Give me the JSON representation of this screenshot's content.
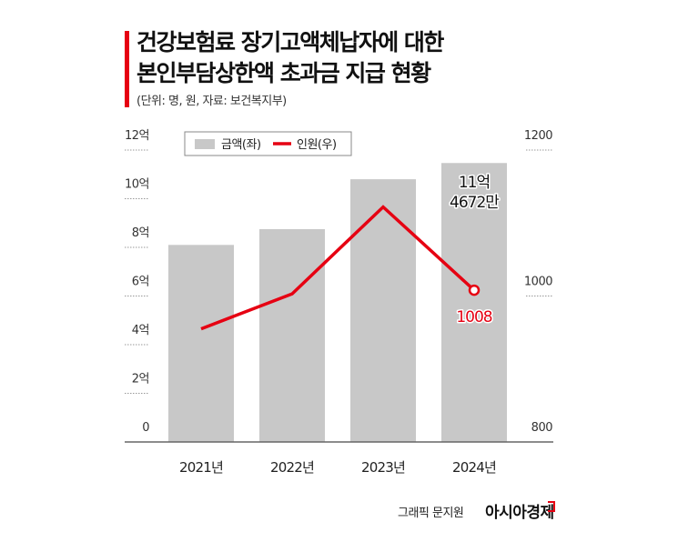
{
  "header": {
    "title_line1": "건강보험료 장기고액체납자에 대한",
    "title_line2": "본인부담상한액 초과금 지급 현황",
    "subtitle": "(단위: 명, 원, 자료: 보건복지부)"
  },
  "footer": {
    "credit": "그래픽 문지원",
    "brand": "아시아경제"
  },
  "colors": {
    "bar": "#c8c8c8",
    "line": "#e60012",
    "accent": "#e60012"
  },
  "chart_data": {
    "type": "bar+line",
    "categories": [
      "2021년",
      "2022년",
      "2023년",
      "2024년"
    ],
    "series": [
      {
        "name": "금액(좌)",
        "type": "bar",
        "axis": "left",
        "unit": "억 원",
        "values": [
          8.1,
          8.75,
          10.8,
          11.4672
        ]
      },
      {
        "name": "인원(우)",
        "type": "line",
        "axis": "right",
        "unit": "명",
        "values": [
          955,
          1003,
          1122,
          1008
        ]
      }
    ],
    "left_axis": {
      "ylim": [
        0,
        12
      ],
      "ticks": [
        0,
        2,
        4,
        6,
        8,
        10,
        12
      ],
      "tick_labels": [
        "0",
        "2억",
        "4억",
        "6억",
        "8억",
        "10억",
        "12억"
      ]
    },
    "right_axis": {
      "ylim": [
        800,
        1200
      ],
      "ticks": [
        800,
        1000,
        1200
      ],
      "tick_labels": [
        "800",
        "1000",
        "1200"
      ]
    },
    "legend": {
      "placement": "top-left",
      "items": [
        "금액(좌)",
        "인원(우)"
      ]
    },
    "annotations": [
      {
        "category": "2024년",
        "series": "금액(좌)",
        "text_line1": "11억",
        "text_line2": "4672만"
      },
      {
        "category": "2024년",
        "series": "인원(우)",
        "text": "1008"
      }
    ],
    "grid": false
  }
}
